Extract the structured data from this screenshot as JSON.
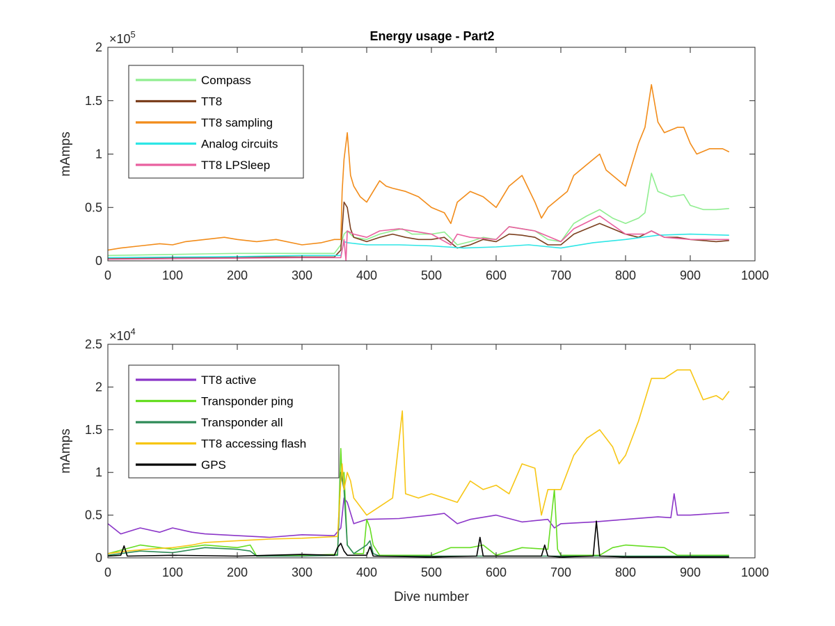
{
  "figure": {
    "title": "Energy usage - Part2"
  },
  "chart_data": [
    {
      "type": "line",
      "title": "Energy usage - Part2",
      "xlabel": "",
      "ylabel": "mAmps",
      "xlim": [
        0,
        1000
      ],
      "ylim": [
        0,
        200000
      ],
      "y_exponent_label": "×10^5",
      "y_exponent_base": "×10",
      "y_exponent_power": "5",
      "xticks": [
        0,
        100,
        200,
        300,
        400,
        500,
        600,
        700,
        800,
        900,
        1000
      ],
      "yticks": [
        0,
        50000,
        100000,
        150000,
        200000
      ],
      "ytick_labels": [
        "0",
        "0.5",
        "1",
        "1.5",
        "2"
      ],
      "grid": false,
      "legend_position": "top-left",
      "series": [
        {
          "name": "Compass",
          "color": "#90EE90",
          "x": [
            0,
            50,
            100,
            150,
            200,
            250,
            300,
            350,
            360,
            365,
            370,
            380,
            400,
            420,
            440,
            455,
            470,
            500,
            520,
            540,
            560,
            580,
            600,
            620,
            640,
            660,
            680,
            700,
            720,
            740,
            760,
            780,
            800,
            820,
            830,
            840,
            850,
            870,
            890,
            900,
            920,
            940,
            960
          ],
          "y": [
            5000,
            5500,
            6000,
            6500,
            7000,
            7000,
            7000,
            7000,
            15000,
            25000,
            28000,
            22000,
            20000,
            25000,
            28000,
            30000,
            25000,
            25000,
            27000,
            15000,
            18000,
            22000,
            20000,
            32000,
            30000,
            28000,
            20000,
            18000,
            35000,
            42000,
            48000,
            40000,
            35000,
            40000,
            45000,
            82000,
            65000,
            60000,
            62000,
            52000,
            48000,
            48000,
            49000
          ]
        },
        {
          "name": "TT8",
          "color": "#7B3F1E",
          "x": [
            0,
            50,
            100,
            150,
            200,
            250,
            300,
            350,
            360,
            365,
            370,
            375,
            380,
            400,
            420,
            440,
            460,
            480,
            500,
            520,
            540,
            560,
            580,
            600,
            620,
            640,
            660,
            680,
            700,
            720,
            740,
            760,
            780,
            800,
            820,
            840,
            860,
            880,
            900,
            920,
            940,
            960
          ],
          "y": [
            2000,
            2500,
            3000,
            3000,
            3500,
            3500,
            3500,
            3500,
            10000,
            55000,
            50000,
            30000,
            22000,
            18000,
            22000,
            25000,
            22000,
            20000,
            20000,
            22000,
            12000,
            15000,
            20000,
            18000,
            25000,
            24000,
            22000,
            15000,
            15000,
            25000,
            30000,
            35000,
            30000,
            25000,
            22000,
            28000,
            22000,
            22000,
            20000,
            19000,
            18000,
            19000
          ]
        },
        {
          "name": "TT8 sampling",
          "color": "#F28C1A",
          "x": [
            0,
            20,
            50,
            80,
            100,
            120,
            150,
            180,
            200,
            230,
            260,
            300,
            330,
            350,
            360,
            362,
            365,
            370,
            375,
            380,
            390,
            400,
            410,
            420,
            430,
            440,
            460,
            480,
            500,
            520,
            530,
            540,
            560,
            580,
            600,
            620,
            640,
            660,
            670,
            680,
            700,
            710,
            720,
            740,
            760,
            770,
            790,
            800,
            810,
            820,
            830,
            840,
            850,
            860,
            880,
            890,
            900,
            910,
            930,
            950,
            960
          ],
          "y": [
            10000,
            12000,
            14000,
            16000,
            15000,
            18000,
            20000,
            22000,
            20000,
            18000,
            20000,
            15000,
            17000,
            20000,
            20000,
            65000,
            95000,
            120000,
            80000,
            70000,
            60000,
            55000,
            65000,
            75000,
            70000,
            68000,
            65000,
            60000,
            50000,
            45000,
            35000,
            55000,
            65000,
            60000,
            50000,
            70000,
            80000,
            55000,
            40000,
            50000,
            60000,
            65000,
            80000,
            90000,
            100000,
            85000,
            75000,
            70000,
            90000,
            110000,
            125000,
            165000,
            130000,
            120000,
            125000,
            125000,
            110000,
            100000,
            105000,
            105000,
            102000
          ]
        },
        {
          "name": "Analog circuits",
          "color": "#2EE6E6",
          "x": [
            0,
            100,
            200,
            300,
            360,
            365,
            370,
            400,
            450,
            500,
            550,
            600,
            650,
            700,
            750,
            800,
            850,
            900,
            960
          ],
          "y": [
            3000,
            3500,
            4000,
            5000,
            5000,
            18000,
            17000,
            15000,
            15000,
            14000,
            12000,
            13000,
            15000,
            12000,
            17000,
            20000,
            24000,
            25000,
            24000
          ]
        },
        {
          "name": "TT8 LPSleep",
          "color": "#E9609F",
          "x": [
            0,
            100,
            200,
            300,
            360,
            365,
            368,
            370,
            380,
            400,
            420,
            450,
            500,
            530,
            540,
            560,
            600,
            620,
            640,
            660,
            700,
            720,
            760,
            800,
            830,
            840,
            860,
            900,
            960
          ],
          "y": [
            1500,
            2000,
            2500,
            3000,
            3000,
            20000,
            0,
            28000,
            25000,
            22000,
            28000,
            30000,
            25000,
            15000,
            25000,
            22000,
            20000,
            32000,
            30000,
            28000,
            18000,
            30000,
            42000,
            25000,
            25000,
            28000,
            22000,
            20000,
            20000
          ]
        }
      ]
    },
    {
      "type": "line",
      "title": "",
      "xlabel": "Dive number",
      "ylabel": "mAmps",
      "xlim": [
        0,
        1000
      ],
      "ylim": [
        0,
        25000
      ],
      "y_exponent_label": "×10^4",
      "y_exponent_base": "×10",
      "y_exponent_power": "4",
      "xticks": [
        0,
        100,
        200,
        300,
        400,
        500,
        600,
        700,
        800,
        900,
        1000
      ],
      "yticks": [
        0,
        5000,
        10000,
        15000,
        20000,
        25000
      ],
      "ytick_labels": [
        "0",
        "0.5",
        "1",
        "1.5",
        "2",
        "2.5"
      ],
      "grid": false,
      "legend_position": "top-left",
      "series": [
        {
          "name": "TT8 active",
          "color": "#8B35C8",
          "x": [
            0,
            20,
            50,
            80,
            100,
            130,
            150,
            200,
            250,
            300,
            350,
            360,
            365,
            370,
            380,
            400,
            450,
            500,
            520,
            540,
            560,
            600,
            640,
            680,
            690,
            700,
            750,
            800,
            850,
            870,
            875,
            880,
            900,
            960
          ],
          "y": [
            4000,
            2800,
            3500,
            3000,
            3500,
            3000,
            2800,
            2600,
            2400,
            2700,
            2600,
            3500,
            7000,
            6500,
            4000,
            4500,
            4600,
            5000,
            5200,
            4000,
            4500,
            5000,
            4200,
            4500,
            3500,
            4000,
            4200,
            4500,
            4800,
            4700,
            7500,
            5000,
            5000,
            5300
          ]
        },
        {
          "name": "Transponder ping",
          "color": "#66DD22",
          "x": [
            0,
            50,
            100,
            150,
            200,
            220,
            230,
            300,
            355,
            360,
            362,
            365,
            370,
            380,
            395,
            400,
            405,
            410,
            420,
            500,
            530,
            560,
            580,
            600,
            640,
            680,
            690,
            695,
            700,
            760,
            780,
            800,
            860,
            880,
            960
          ],
          "y": [
            500,
            1500,
            1000,
            1500,
            1200,
            1500,
            200,
            300,
            400,
            12800,
            9000,
            10000,
            1500,
            500,
            500,
            4500,
            3500,
            1500,
            300,
            300,
            1200,
            1200,
            1500,
            300,
            1200,
            1000,
            8000,
            1000,
            300,
            300,
            1200,
            1500,
            1200,
            300,
            300
          ]
        },
        {
          "name": "Transponder all",
          "color": "#2E8B57",
          "x": [
            0,
            50,
            100,
            150,
            200,
            220,
            230,
            300,
            355,
            360,
            365,
            370,
            380,
            400,
            405,
            410,
            420,
            500,
            960
          ],
          "y": [
            300,
            800,
            600,
            1200,
            1000,
            800,
            200,
            200,
            300,
            10000,
            8000,
            1500,
            500,
            1500,
            2000,
            500,
            200,
            200,
            200
          ]
        },
        {
          "name": "TT8 accessing flash",
          "color": "#F7C614",
          "x": [
            0,
            30,
            60,
            100,
            130,
            150,
            200,
            250,
            300,
            355,
            360,
            362,
            365,
            370,
            375,
            380,
            400,
            420,
            440,
            455,
            460,
            480,
            500,
            520,
            540,
            560,
            580,
            600,
            620,
            640,
            660,
            670,
            680,
            700,
            720,
            740,
            760,
            780,
            790,
            800,
            820,
            840,
            860,
            880,
            900,
            920,
            940,
            950,
            960
          ],
          "y": [
            500,
            800,
            1000,
            1200,
            1500,
            1800,
            2000,
            2200,
            2300,
            2500,
            9000,
            11000,
            8000,
            10000,
            9000,
            7000,
            5000,
            6000,
            7000,
            17200,
            7500,
            7000,
            7500,
            7000,
            6500,
            9000,
            8000,
            8500,
            7500,
            11000,
            10500,
            5000,
            8000,
            8000,
            12000,
            14000,
            15000,
            13000,
            11000,
            12000,
            16000,
            21000,
            21000,
            22000,
            22000,
            18500,
            19000,
            18500,
            19500
          ]
        },
        {
          "name": "GPS",
          "color": "#000000",
          "x": [
            0,
            20,
            25,
            30,
            100,
            200,
            300,
            350,
            355,
            360,
            365,
            370,
            400,
            405,
            410,
            500,
            570,
            575,
            580,
            600,
            670,
            675,
            680,
            700,
            750,
            755,
            760,
            800,
            900,
            960
          ],
          "y": [
            200,
            300,
            1400,
            200,
            300,
            200,
            400,
            300,
            1200,
            1700,
            800,
            300,
            300,
            1300,
            200,
            100,
            200,
            2400,
            200,
            200,
            200,
            1500,
            200,
            100,
            200,
            4300,
            200,
            100,
            100,
            100
          ]
        }
      ]
    }
  ]
}
